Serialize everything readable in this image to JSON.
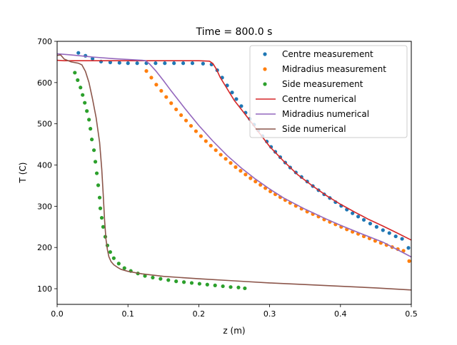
{
  "chart_data": {
    "type": "line",
    "title": "Time = 800.0 s",
    "xlabel": "z (m)",
    "ylabel": "T (C)",
    "xlim": [
      0,
      0.5
    ],
    "ylim": [
      62,
      700
    ],
    "xticks": [
      0.0,
      0.1,
      0.2,
      0.3,
      0.4,
      0.5
    ],
    "xtick_labels": [
      "0.0",
      "0.1",
      "0.2",
      "0.3",
      "0.4",
      "0.5"
    ],
    "yticks": [
      100,
      200,
      300,
      400,
      500,
      600,
      700
    ],
    "ytick_labels": [
      "100",
      "200",
      "300",
      "400",
      "500",
      "600",
      "700"
    ],
    "grid": false,
    "legend_position": "top-right",
    "series": [
      {
        "name": "Centre measurement",
        "style": "markers",
        "color": "#1f77b4",
        "x": [
          0.03,
          0.04,
          0.05,
          0.062,
          0.075,
          0.088,
          0.1,
          0.113,
          0.126,
          0.139,
          0.152,
          0.165,
          0.178,
          0.191,
          0.206,
          0.218,
          0.226,
          0.233,
          0.24,
          0.247,
          0.253,
          0.26,
          0.266,
          0.272,
          0.278,
          0.284,
          0.29,
          0.296,
          0.302,
          0.308,
          0.315,
          0.322,
          0.329,
          0.337,
          0.345,
          0.353,
          0.361,
          0.369,
          0.377,
          0.385,
          0.393,
          0.401,
          0.409,
          0.417,
          0.425,
          0.433,
          0.442,
          0.451,
          0.46,
          0.469,
          0.478,
          0.487,
          0.496
        ],
        "y": [
          672,
          665,
          658,
          651,
          649,
          648,
          647,
          647,
          647,
          647,
          647,
          647,
          647,
          647,
          646,
          644,
          630,
          612,
          593,
          576,
          560,
          543,
          527,
          512,
          498,
          484,
          470,
          457,
          444,
          432,
          419,
          406,
          394,
          382,
          371,
          360,
          349,
          339,
          329,
          320,
          310,
          301,
          292,
          283,
          275,
          267,
          258,
          250,
          242,
          235,
          227,
          221,
          199
        ]
      },
      {
        "name": "Midradius measurement",
        "style": "markers",
        "color": "#ff7f0e",
        "x": [
          0.126,
          0.133,
          0.14,
          0.147,
          0.154,
          0.161,
          0.168,
          0.175,
          0.182,
          0.189,
          0.196,
          0.203,
          0.21,
          0.217,
          0.224,
          0.231,
          0.238,
          0.245,
          0.252,
          0.259,
          0.266,
          0.273,
          0.28,
          0.287,
          0.294,
          0.301,
          0.308,
          0.315,
          0.322,
          0.329,
          0.337,
          0.345,
          0.353,
          0.361,
          0.369,
          0.377,
          0.385,
          0.393,
          0.401,
          0.409,
          0.417,
          0.425,
          0.433,
          0.441,
          0.449,
          0.457,
          0.465,
          0.473,
          0.481,
          0.489,
          0.497
        ],
        "y": [
          628,
          612,
          595,
          580,
          565,
          550,
          535,
          521,
          508,
          495,
          482,
          470,
          458,
          447,
          436,
          425,
          415,
          405,
          395,
          386,
          377,
          368,
          360,
          352,
          344,
          336,
          329,
          322,
          315,
          308,
          301,
          294,
          287,
          281,
          275,
          268,
          262,
          256,
          250,
          244,
          238,
          233,
          227,
          222,
          216,
          211,
          206,
          201,
          196,
          192,
          167
        ]
      },
      {
        "name": "Side measurement",
        "style": "markers",
        "color": "#2ca02c",
        "x": [
          0.025,
          0.029,
          0.033,
          0.036,
          0.039,
          0.042,
          0.045,
          0.047,
          0.049,
          0.052,
          0.054,
          0.056,
          0.058,
          0.06,
          0.061,
          0.063,
          0.065,
          0.068,
          0.071,
          0.075,
          0.08,
          0.087,
          0.095,
          0.104,
          0.114,
          0.124,
          0.135,
          0.146,
          0.157,
          0.168,
          0.179,
          0.19,
          0.201,
          0.212,
          0.223,
          0.234,
          0.245,
          0.256,
          0.265
        ],
        "y": [
          624,
          606,
          588,
          570,
          551,
          531,
          510,
          488,
          462,
          436,
          408,
          380,
          351,
          321,
          295,
          272,
          250,
          226,
          205,
          189,
          174,
          161,
          150,
          143,
          137,
          131,
          127,
          124,
          121,
          118,
          116,
          114,
          112,
          110,
          108,
          106,
          104,
          103,
          101
        ]
      },
      {
        "name": "Centre numerical",
        "style": "line",
        "color": "#d62728",
        "x": [
          0.0,
          0.01,
          0.05,
          0.1,
          0.15,
          0.2,
          0.215,
          0.22,
          0.225,
          0.23,
          0.24,
          0.25,
          0.26,
          0.27,
          0.28,
          0.3,
          0.32,
          0.34,
          0.36,
          0.38,
          0.4,
          0.42,
          0.44,
          0.46,
          0.48,
          0.5
        ],
        "y": [
          654,
          653,
          653,
          653,
          653,
          653,
          652,
          646,
          632,
          613,
          585,
          557,
          535,
          513,
          490,
          445,
          409,
          376,
          350,
          326,
          305,
          286,
          268,
          252,
          235,
          218
        ]
      },
      {
        "name": "Midradius numerical",
        "style": "line",
        "color": "#9467bd",
        "x": [
          0.0,
          0.02,
          0.05,
          0.08,
          0.1,
          0.12,
          0.125,
          0.13,
          0.14,
          0.15,
          0.16,
          0.18,
          0.2,
          0.22,
          0.24,
          0.26,
          0.28,
          0.3,
          0.32,
          0.35,
          0.38,
          0.4,
          0.43,
          0.46,
          0.5
        ],
        "y": [
          670,
          667,
          662,
          658,
          656,
          654,
          653,
          646,
          627,
          605,
          582,
          538,
          496,
          458,
          423,
          393,
          366,
          342,
          320,
          293,
          269,
          254,
          233,
          213,
          177
        ]
      },
      {
        "name": "Side numerical",
        "style": "line",
        "color": "#8c564b",
        "x": [
          0.0,
          0.005,
          0.01,
          0.02,
          0.03,
          0.035,
          0.04,
          0.045,
          0.05,
          0.055,
          0.06,
          0.063,
          0.065,
          0.067,
          0.069,
          0.071,
          0.073,
          0.076,
          0.08,
          0.085,
          0.09,
          0.1,
          0.12,
          0.15,
          0.2,
          0.25,
          0.3,
          0.35,
          0.4,
          0.45,
          0.5
        ],
        "y": [
          666,
          667,
          657,
          650,
          647,
          643,
          627,
          600,
          560,
          515,
          455,
          390,
          330,
          265,
          220,
          195,
          178,
          166,
          158,
          152,
          147,
          142,
          136,
          130,
          124,
          119,
          114,
          110,
          106,
          102,
          97
        ]
      }
    ]
  }
}
